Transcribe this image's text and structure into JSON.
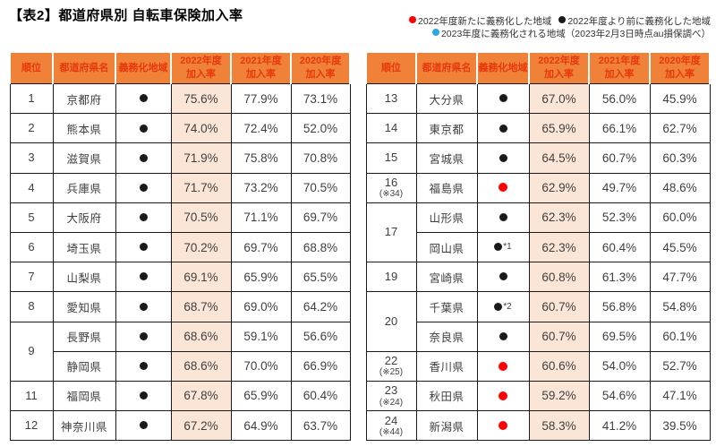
{
  "title": "【表2】都道府県別 自転車保険加入率",
  "legend": {
    "items": [
      {
        "dot": "red",
        "label": "2022年度新たに義務化した地域"
      },
      {
        "dot": "black",
        "label": "2022年度より前に義務化した地域"
      },
      {
        "dot": "blue",
        "label": "2023年度に義務化される地域（2023年2月3日時点au損保調べ）"
      }
    ]
  },
  "colors": {
    "header_bg": "#ef8238",
    "header_text": "#e8380d",
    "highlight_column_bg": "#fbe5d6",
    "dot_red": "#ff0000",
    "dot_black": "#1a1a1a",
    "dot_blue": "#2ea7e0",
    "border": "#1a1a1a"
  },
  "header": {
    "rank": "順位",
    "pref": "都道府県名",
    "region": "義務化地域",
    "y2022": "2022年度\n加入率",
    "y2021": "2021年度\n加入率",
    "y2020": "2020年度\n加入率"
  },
  "left_table": {
    "rows": [
      {
        "rank": "1",
        "pref": "京都府",
        "dot": "black",
        "r2022": "75.6%",
        "r2021": "77.9%",
        "r2020": "73.1%"
      },
      {
        "rank": "2",
        "pref": "熊本県",
        "dot": "black",
        "r2022": "74.0%",
        "r2021": "72.4%",
        "r2020": "52.0%"
      },
      {
        "rank": "3",
        "pref": "滋賀県",
        "dot": "black",
        "r2022": "71.9%",
        "r2021": "75.8%",
        "r2020": "70.8%"
      },
      {
        "rank": "4",
        "pref": "兵庫県",
        "dot": "black",
        "r2022": "71.7%",
        "r2021": "73.2%",
        "r2020": "70.5%"
      },
      {
        "rank": "5",
        "pref": "大阪府",
        "dot": "black",
        "r2022": "70.5%",
        "r2021": "71.1%",
        "r2020": "69.7%"
      },
      {
        "rank": "6",
        "pref": "埼玉県",
        "dot": "black",
        "r2022": "70.2%",
        "r2021": "69.7%",
        "r2020": "68.8%"
      },
      {
        "rank": "7",
        "pref": "山梨県",
        "dot": "black",
        "r2022": "69.1%",
        "r2021": "65.9%",
        "r2020": "65.5%"
      },
      {
        "rank": "8",
        "pref": "愛知県",
        "dot": "black",
        "r2022": "68.7%",
        "r2021": "69.0%",
        "r2020": "64.2%"
      },
      {
        "rank": "9",
        "rank_span": 2,
        "pref": "長野県",
        "dot": "black",
        "r2022": "68.6%",
        "r2021": "59.1%",
        "r2020": "56.6%"
      },
      {
        "pref": "静岡県",
        "dot": "black",
        "r2022": "68.6%",
        "r2021": "70.0%",
        "r2020": "66.9%"
      },
      {
        "rank": "11",
        "pref": "福岡県",
        "dot": "black",
        "r2022": "67.8%",
        "r2021": "65.9%",
        "r2020": "60.4%"
      },
      {
        "rank": "12",
        "pref": "神奈川県",
        "dot": "black",
        "r2022": "67.2%",
        "r2021": "64.9%",
        "r2020": "63.7%"
      }
    ]
  },
  "right_table": {
    "rows": [
      {
        "rank": "13",
        "pref": "大分県",
        "dot": "black",
        "r2022": "67.0%",
        "r2021": "56.0%",
        "r2020": "45.9%"
      },
      {
        "rank": "14",
        "pref": "東京都",
        "dot": "black",
        "r2022": "65.9%",
        "r2021": "66.1%",
        "r2020": "62.7%"
      },
      {
        "rank": "15",
        "pref": "宮城県",
        "dot": "black",
        "r2022": "64.5%",
        "r2021": "60.7%",
        "r2020": "60.3%"
      },
      {
        "rank": "16",
        "rank_note": "(※34)",
        "pref": "福島県",
        "dot": "red",
        "r2022": "62.9%",
        "r2021": "49.7%",
        "r2020": "48.6%"
      },
      {
        "rank": "17",
        "rank_span": 2,
        "pref": "山形県",
        "dot": "black",
        "r2022": "62.3%",
        "r2021": "52.3%",
        "r2020": "60.0%"
      },
      {
        "pref": "岡山県",
        "dot": "black",
        "dot_note": "*1",
        "r2022": "62.3%",
        "r2021": "60.4%",
        "r2020": "45.5%"
      },
      {
        "rank": "19",
        "pref": "宮崎県",
        "dot": "black",
        "r2022": "60.8%",
        "r2021": "61.3%",
        "r2020": "47.7%"
      },
      {
        "rank": "20",
        "rank_span": 2,
        "pref": "千葉県",
        "dot": "black",
        "dot_note": "*2",
        "r2022": "60.7%",
        "r2021": "56.8%",
        "r2020": "54.8%"
      },
      {
        "pref": "奈良県",
        "dot": "black",
        "r2022": "60.7%",
        "r2021": "69.5%",
        "r2020": "60.1%"
      },
      {
        "rank": "22",
        "rank_note": "(※25)",
        "pref": "香川県",
        "dot": "red",
        "r2022": "60.6%",
        "r2021": "54.0%",
        "r2020": "52.7%"
      },
      {
        "rank": "23",
        "rank_note": "(※24)",
        "pref": "秋田県",
        "dot": "red",
        "r2022": "59.2%",
        "r2021": "54.6%",
        "r2020": "47.1%"
      },
      {
        "rank": "24",
        "rank_note": "(※44)",
        "pref": "新潟県",
        "dot": "red",
        "r2022": "58.3%",
        "r2021": "41.2%",
        "r2020": "39.5%"
      }
    ]
  }
}
